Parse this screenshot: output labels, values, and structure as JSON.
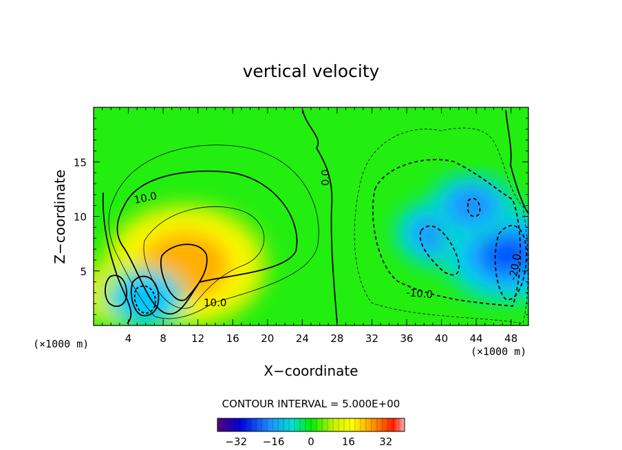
{
  "chart_data": {
    "type": "heatmap",
    "title": "vertical velocity",
    "xlabel": "X−coordinate",
    "ylabel": "Z−coordinate",
    "x_unit": "(×1000 m)",
    "z_unit": "(×1000 m)",
    "xlim": [
      0,
      50
    ],
    "ylim": [
      0,
      20
    ],
    "x_ticks": [
      4,
      8,
      12,
      16,
      20,
      24,
      28,
      32,
      36,
      40,
      44,
      48
    ],
    "y_ticks": [
      5,
      10,
      15
    ],
    "contour_interval_text": "CONTOUR INTERVAL = 5.000E+00",
    "contour_interval": 5.0,
    "contour_labels": [
      "10.0",
      "10.0",
      "0.0",
      "-10.0",
      "-20.0"
    ],
    "colorbar": {
      "range": [
        -40,
        40
      ],
      "ticks": [
        "−32",
        "−16",
        "0",
        "16",
        "32"
      ],
      "tick_values": [
        -32,
        -16,
        0,
        16,
        32
      ]
    },
    "features": [
      {
        "sign": "positive",
        "x": 10.5,
        "z": 5.5,
        "peak": 30
      },
      {
        "sign": "positive",
        "x": 3.0,
        "z": 3.0,
        "peak": 16
      },
      {
        "sign": "negative",
        "x": 6.0,
        "z": 2.5,
        "peak": -18
      },
      {
        "sign": "negative",
        "x": 40.0,
        "z": 8.5,
        "peak": -22
      },
      {
        "sign": "negative",
        "x": 47.5,
        "z": 6.5,
        "peak": -30
      },
      {
        "sign": "negative",
        "x": 43.5,
        "z": 11.0,
        "peak": -20
      }
    ]
  }
}
